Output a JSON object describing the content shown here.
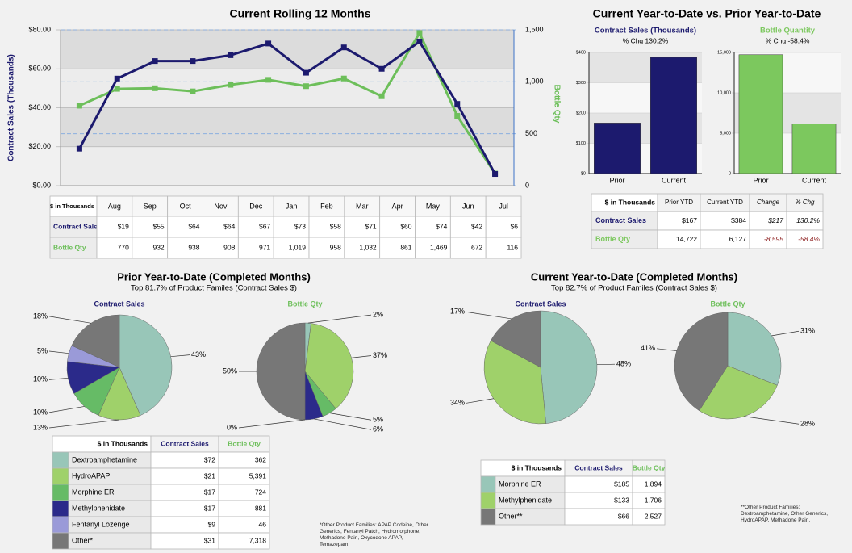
{
  "chart_data": [
    {
      "type": "line",
      "title": "Current Rolling 12 Months",
      "y_label": "Contract Sales (Thousands)",
      "y2_label": "Bottle Qty",
      "categories": [
        "Aug",
        "Sep",
        "Oct",
        "Nov",
        "Dec",
        "Jan",
        "Feb",
        "Mar",
        "Apr",
        "May",
        "Jun",
        "Jul"
      ],
      "series": [
        {
          "name": "Contract Sales",
          "color": "#1c1a6e",
          "values": [
            19,
            55,
            64,
            64,
            67,
            73,
            58,
            71,
            60,
            74,
            42,
            6
          ],
          "value_labels": [
            "$19",
            "$55",
            "$64",
            "$64",
            "$67",
            "$73",
            "$58",
            "$71",
            "$60",
            "$74",
            "$42",
            "$6"
          ]
        },
        {
          "name": "Bottle Qty",
          "color": "#6dbf5a",
          "axis": "y2",
          "values": [
            770,
            932,
            938,
            908,
            971,
            1019,
            958,
            1032,
            861,
            1469,
            672,
            116
          ],
          "value_labels": [
            "770",
            "932",
            "938",
            "908",
            "971",
            "1,019",
            "958",
            "1,032",
            "861",
            "1,469",
            "672",
            "116"
          ]
        }
      ],
      "ylim": [
        0,
        80
      ],
      "yticks": [
        {
          "value": 0,
          "label": "$0.00"
        },
        {
          "value": 20,
          "label": "$20.00"
        },
        {
          "value": 40,
          "label": "$40.00"
        },
        {
          "value": 60,
          "label": "$60.00"
        },
        {
          "value": 80,
          "label": "$80.00"
        }
      ],
      "y2lim": [
        0,
        1500
      ],
      "y2ticks": [
        0,
        500,
        {
          "value": 1000,
          "label": "1,000"
        },
        {
          "value": 1500,
          "label": "1,500"
        }
      ],
      "grid": true
    },
    {
      "type": "bar",
      "title": "Contract Sales (Thousands)",
      "subtitle": "% Chg 130.2%",
      "categories": [
        "Prior",
        "Current"
      ],
      "values": [
        167,
        384
      ],
      "value_labels": [
        "$167",
        "$384"
      ],
      "color": "#1c1a6e",
      "ylim": [
        0,
        400
      ],
      "yticks": [
        {
          "value": 0,
          "label": "$0"
        },
        {
          "value": 100,
          "label": "$100"
        },
        {
          "value": 200,
          "label": "$200"
        },
        {
          "value": 300,
          "label": "$300"
        },
        {
          "value": 400,
          "label": "$400"
        }
      ]
    },
    {
      "type": "bar",
      "title": "Bottle Quantity",
      "subtitle": "% Chg -58.4%",
      "categories": [
        "Prior",
        "Current"
      ],
      "values": [
        14722,
        6127
      ],
      "value_labels": [
        "14,722",
        "6,127"
      ],
      "color": "#7cc85e",
      "ylim": [
        0,
        15000
      ],
      "yticks": [
        0,
        {
          "value": 5000,
          "label": "5,000"
        },
        {
          "value": 10000,
          "label": "10,000"
        },
        {
          "value": 15000,
          "label": "15,000"
        }
      ]
    },
    {
      "type": "pie",
      "title": "Contract Sales",
      "categories": [
        "Dextroamphetamine",
        "HydroAPAP",
        "Morphine ER",
        "Methylphenidate",
        "Fentanyl Lozenge",
        "Other*"
      ],
      "values": [
        43,
        13,
        10,
        10,
        5,
        18
      ],
      "value_labels": [
        "43%",
        "13%",
        "10%",
        "10%",
        "5%",
        "18%"
      ],
      "colors": [
        "#98c6b8",
        "#9fd16a",
        "#66bb66",
        "#2b2a8a",
        "#9a9ad8",
        "#777777"
      ]
    },
    {
      "type": "pie",
      "title": "Bottle Qty",
      "categories": [
        "Dextroamphetamine",
        "HydroAPAP",
        "Morphine ER",
        "Methylphenidate",
        "Fentanyl Lozenge",
        "Other*"
      ],
      "values": [
        2,
        37,
        5,
        6,
        0,
        50
      ],
      "value_labels": [
        "2%",
        "37%",
        "5%",
        "6%",
        "0%",
        "50%"
      ],
      "colors": [
        "#98c6b8",
        "#9fd16a",
        "#66bb66",
        "#2b2a8a",
        "#9a9ad8",
        "#777777"
      ]
    },
    {
      "type": "pie",
      "title": "Contract Sales",
      "categories": [
        "Morphine ER",
        "Methylphenidate",
        "Other**"
      ],
      "values": [
        48,
        34,
        17
      ],
      "value_labels": [
        "48%",
        "34%",
        "17%"
      ],
      "colors": [
        "#98c6b8",
        "#9fd16a",
        "#777777"
      ]
    },
    {
      "type": "pie",
      "title": "Bottle Qty",
      "categories": [
        "Morphine ER",
        "Methylphenidate",
        "Other**"
      ],
      "values": [
        31,
        28,
        41
      ],
      "value_labels": [
        "31%",
        "28%",
        "41%"
      ],
      "colors": [
        "#98c6b8",
        "#9fd16a",
        "#777777"
      ]
    }
  ],
  "sections": {
    "ytd": "Current Year-to-Date vs. Prior Year-to-Date",
    "prior": {
      "title": "Prior Year-to-Date (Completed Months)",
      "subtitle": "Top 81.7% of Product Familes (Contract Sales $)",
      "footnote": "*Other Product Families: APAP Codeine, Other Generics, Fentanyl Patch, Hydromorphone, Methadone Pain, Oxycodone APAP, Temazepam."
    },
    "current": {
      "title": "Current Year-to-Date (Completed Months)",
      "subtitle": "Top 82.7% of Product Familes (Contract Sales $)",
      "footnote": "**Other Product Families: Dextroamphetamine, Other Generics, HydroAPAP, Methadone Pain."
    }
  },
  "tables": {
    "rolling": {
      "header": "$ in Thousands"
    },
    "ytd": {
      "header": "$ in Thousands",
      "columns": [
        "Prior YTD",
        "Current YTD",
        "Change",
        "% Chg"
      ],
      "rows": [
        {
          "label": "Contract Sales",
          "change": "$217",
          "pct_change": "130.2%"
        },
        {
          "label": "Bottle Qty",
          "change": "-8,595",
          "pct_change": "-58.4%"
        }
      ]
    },
    "prior": {
      "header": "$ in Thousands",
      "columns": [
        "Contract Sales",
        "Bottle Qty"
      ],
      "rows": [
        [
          "$72",
          "362"
        ],
        [
          "$21",
          "5,391"
        ],
        [
          "$17",
          "724"
        ],
        [
          "$17",
          "881"
        ],
        [
          "$9",
          "46"
        ],
        [
          "$31",
          "7,318"
        ]
      ]
    },
    "current": {
      "header": "$ in Thousands",
      "columns": [
        "Contract Sales",
        "Bottle Qty"
      ],
      "rows": [
        [
          "$185",
          "1,894"
        ],
        [
          "$133",
          "1,706"
        ],
        [
          "$66",
          "2,527"
        ]
      ]
    }
  }
}
